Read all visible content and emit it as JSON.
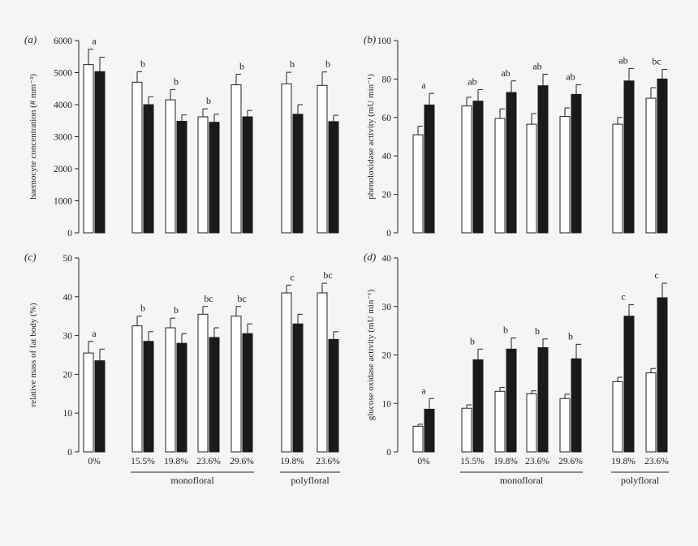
{
  "groups": {
    "sugar_levels": [
      "0%",
      "15.5%",
      "19.8%",
      "23.6%",
      "29.6%",
      "19.8%",
      "23.6%"
    ],
    "monofloral_label": "monofloral",
    "polyfloral_label": "polyfloral"
  },
  "colors": {
    "background": "#f5f5f5",
    "open_bar": "#ffffff",
    "filled_bar": "#1a1a1a"
  },
  "chart_data": [
    {
      "id": "a",
      "panel_label": "(a)",
      "type": "bar",
      "ylabel": "haemocyte concentration (# mm⁻³)",
      "ylim": [
        0,
        6000
      ],
      "yticks": [
        0,
        1000,
        2000,
        3000,
        4000,
        5000,
        6000
      ],
      "categories": [
        "0%",
        "15.5%",
        "19.8%",
        "23.6%",
        "29.6%",
        "19.8%",
        "23.6%"
      ],
      "series": [
        {
          "style": "open",
          "values": [
            5250,
            4700,
            4150,
            3620,
            4620,
            4650,
            4600
          ],
          "errors": [
            480,
            330,
            320,
            250,
            330,
            360,
            420
          ]
        },
        {
          "style": "filled",
          "values": [
            5030,
            4000,
            3480,
            3450,
            3620,
            3700,
            3470
          ],
          "errors": [
            450,
            250,
            200,
            250,
            200,
            300,
            200
          ]
        }
      ],
      "letters": [
        "a",
        "b",
        "b",
        "b",
        "b",
        "b",
        "b"
      ]
    },
    {
      "id": "b",
      "panel_label": "(b)",
      "type": "bar",
      "ylabel": "phenoloxidase activity (mU min⁻¹)",
      "ylim": [
        0,
        100
      ],
      "yticks": [
        0,
        20,
        40,
        60,
        80,
        100
      ],
      "categories": [
        "0%",
        "15.5%",
        "19.8%",
        "23.6%",
        "29.6%",
        "19.8%",
        "23.6%"
      ],
      "series": [
        {
          "style": "open",
          "values": [
            51,
            66,
            59.5,
            56.5,
            60.5,
            56.5,
            70
          ],
          "errors": [
            4.5,
            4.5,
            5,
            5.5,
            4.5,
            3.5,
            5.5
          ]
        },
        {
          "style": "filled",
          "values": [
            66.5,
            68.5,
            73,
            76.5,
            72,
            79,
            80
          ],
          "errors": [
            6,
            6,
            6,
            6,
            5,
            6.5,
            5
          ]
        }
      ],
      "letters": [
        "a",
        "ab",
        "ab",
        "ab",
        "ab",
        "ab",
        "bc"
      ]
    },
    {
      "id": "c",
      "panel_label": "(c)",
      "type": "bar",
      "ylabel": "relative mass of fat body (%)",
      "ylim": [
        0,
        50
      ],
      "yticks": [
        0,
        10,
        20,
        30,
        40,
        50
      ],
      "categories": [
        "0%",
        "15.5%",
        "19.8%",
        "23.6%",
        "29.6%",
        "19.8%",
        "23.6%"
      ],
      "series": [
        {
          "style": "open",
          "values": [
            25.5,
            32.5,
            32,
            35.5,
            35,
            41,
            41
          ],
          "errors": [
            3,
            2.5,
            2.5,
            2,
            2.5,
            2,
            2.5
          ]
        },
        {
          "style": "filled",
          "values": [
            23.5,
            28.5,
            28,
            29.5,
            30.5,
            33,
            29
          ],
          "errors": [
            3,
            2.5,
            2.5,
            2.5,
            2.5,
            2.5,
            2
          ]
        }
      ],
      "letters": [
        "a",
        "b",
        "b",
        "bc",
        "bc",
        "c",
        "bc"
      ]
    },
    {
      "id": "d",
      "panel_label": "(d)",
      "type": "bar",
      "ylabel": "glucose oxidase activity (mU min⁻¹)",
      "ylim": [
        0,
        40
      ],
      "yticks": [
        0,
        10,
        20,
        30,
        40
      ],
      "categories": [
        "0%",
        "15.5%",
        "19.8%",
        "23.6%",
        "29.6%",
        "19.8%",
        "23.6%"
      ],
      "series": [
        {
          "style": "open",
          "values": [
            5.3,
            9,
            12.5,
            12,
            11,
            14.5,
            16.3
          ],
          "errors": [
            0.4,
            0.7,
            0.8,
            0.6,
            0.9,
            0.9,
            0.9
          ]
        },
        {
          "style": "filled",
          "values": [
            8.8,
            19,
            21.2,
            21.5,
            19.2,
            28,
            31.8
          ],
          "errors": [
            2.2,
            2.2,
            2.3,
            1.8,
            3,
            2.4,
            3
          ]
        }
      ],
      "letters": [
        "a",
        "b",
        "b",
        "b",
        "b",
        "c",
        "c"
      ]
    }
  ]
}
